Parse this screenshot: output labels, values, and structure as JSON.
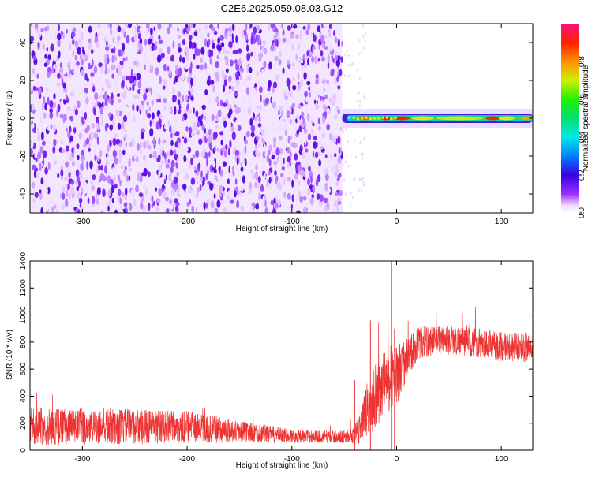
{
  "title": "C2E6.2025.059.08.03.G12",
  "chart_data": [
    {
      "type": "heatmap",
      "xlabel": "Height of straight line (km)",
      "ylabel": "Frequency (Hz)",
      "xlim": [
        -350,
        130
      ],
      "ylim": [
        -50,
        50
      ],
      "x_ticks": [
        -300,
        -200,
        -100,
        0,
        100
      ],
      "y_ticks": [
        -40,
        -20,
        0,
        20,
        40
      ],
      "grid": false,
      "colorbar": {
        "label": "Normalized spectral amplitude",
        "range": [
          0,
          1
        ],
        "ticks": [
          "0.0",
          "0.2",
          "0.4",
          "0.6",
          "0.8"
        ]
      },
      "regions": [
        {
          "x_range": [
            -350,
            -52
          ],
          "frequency_range": [
            -50,
            50
          ],
          "amplitude": "low (0.0-0.2), noise"
        },
        {
          "x_range": [
            -52,
            130
          ],
          "frequency_range": [
            -3,
            3
          ],
          "amplitude": "high (0.3-1.0), carrier near 0 Hz"
        }
      ]
    },
    {
      "type": "line",
      "xlabel": "Height of straight line (km)",
      "ylabel": "SNR (10 * v/v)",
      "xlim": [
        -350,
        130
      ],
      "ylim": [
        0,
        1400
      ],
      "x_ticks": [
        -300,
        -200,
        -100,
        0,
        100
      ],
      "y_ticks": [
        0,
        200,
        400,
        600,
        800,
        1000,
        1200,
        1400
      ],
      "grid": false,
      "series": [
        {
          "color": "#ee3333",
          "envelope_x": [
            -350,
            -300,
            -250,
            -200,
            -150,
            -100,
            -60,
            -45,
            -38,
            -30,
            -20,
            -10,
            0,
            10,
            20,
            40,
            60,
            80,
            100,
            130
          ],
          "envelope_mean": [
            170,
            175,
            175,
            170,
            140,
            105,
            100,
            100,
            120,
            260,
            420,
            520,
            560,
            680,
            790,
            820,
            810,
            790,
            770,
            760
          ],
          "envelope_spread": [
            140,
            140,
            130,
            120,
            80,
            50,
            45,
            45,
            90,
            200,
            250,
            250,
            230,
            160,
            120,
            110,
            110,
            110,
            110,
            110
          ]
        }
      ]
    }
  ]
}
